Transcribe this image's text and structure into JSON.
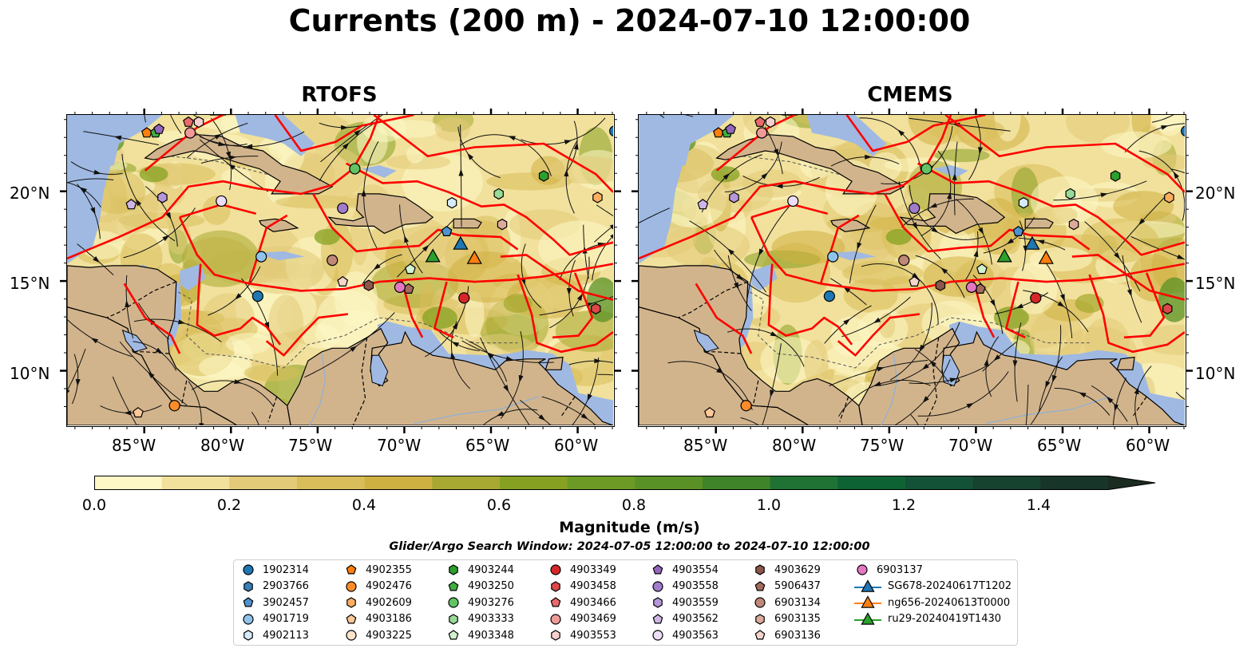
{
  "title": "Currents (200 m) - 2024-07-10 12:00:00",
  "panels": [
    {
      "title": "RTOFS"
    },
    {
      "title": "CMEMS"
    }
  ],
  "axes": {
    "x_ticks": [
      "85°W",
      "80°W",
      "75°W",
      "70°W",
      "65°W",
      "60°W"
    ],
    "y_ticks": [
      "20°N",
      "15°N",
      "10°N"
    ],
    "lon_range": [
      -89.5,
      -58.0
    ],
    "lat_range": [
      7.0,
      24.3
    ]
  },
  "colorbar": {
    "label": "Magnitude (m/s)",
    "ticks": [
      "0.0",
      "0.2",
      "0.4",
      "0.6",
      "0.8",
      "1.0",
      "1.2",
      "1.4"
    ],
    "min": 0.0,
    "max": 1.5,
    "step": 0.1,
    "extend": "max",
    "colors": [
      "#fef8c6",
      "#f1e19c",
      "#e2ca78",
      "#d8bd5a",
      "#cfb142",
      "#a8a932",
      "#86a122",
      "#6c9a24",
      "#5a9126",
      "#3f8428",
      "#1f7233",
      "#0e6334",
      "#135236",
      "#164330",
      "#18352a",
      "#1b2b20"
    ]
  },
  "search_window": "Glider/Argo Search Window: 2024-07-05 12:00:00 to 2024-07-10 12:00:00",
  "colors": {
    "land": "#d2b48c",
    "shelf": "#9fb9e2",
    "boundary": "#ff0000"
  },
  "legend": [
    {
      "label": "1902314",
      "marker": "circle",
      "color": "#1f77b4"
    },
    {
      "label": "2903766",
      "marker": "hexagon",
      "color": "#3a7fb5"
    },
    {
      "label": "3902457",
      "marker": "pentagon",
      "color": "#4e93cf"
    },
    {
      "label": "4901719",
      "marker": "circle",
      "color": "#8fc3ea"
    },
    {
      "label": "4902113",
      "marker": "hexagon",
      "color": "#d6ebfa"
    },
    {
      "label": "4902355",
      "marker": "pentagon",
      "color": "#ff7f0e"
    },
    {
      "label": "4902476",
      "marker": "circle",
      "color": "#ff8c2a"
    },
    {
      "label": "4902609",
      "marker": "hexagon",
      "color": "#ffae62"
    },
    {
      "label": "4903186",
      "marker": "pentagon",
      "color": "#ffc898"
    },
    {
      "label": "4903225",
      "marker": "circle",
      "color": "#ffe4cc"
    },
    {
      "label": "4903244",
      "marker": "hexagon",
      "color": "#2ca02c"
    },
    {
      "label": "4903250",
      "marker": "pentagon",
      "color": "#3fae3f"
    },
    {
      "label": "4903276",
      "marker": "circle",
      "color": "#63c263"
    },
    {
      "label": "4903333",
      "marker": "hexagon",
      "color": "#98da98"
    },
    {
      "label": "4903348",
      "marker": "pentagon",
      "color": "#d2f2d2"
    },
    {
      "label": "4903349",
      "marker": "circle",
      "color": "#d62728"
    },
    {
      "label": "4903458",
      "marker": "hexagon",
      "color": "#dd4748"
    },
    {
      "label": "4903466",
      "marker": "pentagon",
      "color": "#e86a6a"
    },
    {
      "label": "4903469",
      "marker": "circle",
      "color": "#f09a98"
    },
    {
      "label": "4903553",
      "marker": "hexagon",
      "color": "#f8cfcf"
    },
    {
      "label": "4903554",
      "marker": "pentagon",
      "color": "#9467bd"
    },
    {
      "label": "4903558",
      "marker": "circle",
      "color": "#a07ccb"
    },
    {
      "label": "4903559",
      "marker": "hexagon",
      "color": "#b598d8"
    },
    {
      "label": "4903562",
      "marker": "pentagon",
      "color": "#cdb6e6"
    },
    {
      "label": "4903563",
      "marker": "circle",
      "color": "#ecdef8"
    },
    {
      "label": "4903629",
      "marker": "hexagon",
      "color": "#8c564b"
    },
    {
      "label": "5906437",
      "marker": "pentagon",
      "color": "#a36b5e"
    },
    {
      "label": "6903134",
      "marker": "circle",
      "color": "#c08878"
    },
    {
      "label": "6903135",
      "marker": "hexagon",
      "color": "#ddaa9a"
    },
    {
      "label": "6903136",
      "marker": "pentagon",
      "color": "#f5d5cb"
    },
    {
      "label": "6903137",
      "marker": "circle",
      "color": "#e377c2"
    },
    {
      "label": "SG678-20240617T1202",
      "marker": "triangle",
      "color": "#1f77b4"
    },
    {
      "label": "ng656-20240613T0000",
      "marker": "triangle",
      "color": "#ff7f0e"
    },
    {
      "label": "ru29-20240419T1430",
      "marker": "triangle",
      "color": "#2ca02c"
    }
  ],
  "platforms": [
    {
      "id": "1902314",
      "lon": -78.5,
      "lat": 14.2
    },
    {
      "id": "1902314",
      "lon": -57.9,
      "lat": 23.4
    },
    {
      "id": "4901719",
      "lon": -78.3,
      "lat": 16.4
    },
    {
      "id": "4902113",
      "lon": -67.3,
      "lat": 19.4
    },
    {
      "id": "3902457",
      "lon": -67.6,
      "lat": 17.8
    },
    {
      "id": "4902355",
      "lon": -84.9,
      "lat": 23.3
    },
    {
      "id": "4902476",
      "lon": -83.3,
      "lat": 8.1
    },
    {
      "id": "4902609",
      "lon": -58.9,
      "lat": 19.7
    },
    {
      "id": "4903186",
      "lon": -85.4,
      "lat": 7.7
    },
    {
      "id": "4903244",
      "lon": -62.0,
      "lat": 20.9
    },
    {
      "id": "4903250",
      "lon": -84.4,
      "lat": 23.3
    },
    {
      "id": "4903276",
      "lon": -72.9,
      "lat": 21.3
    },
    {
      "id": "4903333",
      "lon": -64.6,
      "lat": 19.9
    },
    {
      "id": "4903348",
      "lon": -69.7,
      "lat": 15.7
    },
    {
      "id": "4903349",
      "lon": -66.6,
      "lat": 14.1
    },
    {
      "id": "4903458",
      "lon": -59.0,
      "lat": 13.5
    },
    {
      "id": "4903466",
      "lon": -82.5,
      "lat": 23.9
    },
    {
      "id": "4903469",
      "lon": -82.4,
      "lat": 23.3
    },
    {
      "id": "4903553",
      "lon": -81.9,
      "lat": 23.9
    },
    {
      "id": "4903554",
      "lon": -84.2,
      "lat": 23.5
    },
    {
      "id": "4903558",
      "lon": -73.6,
      "lat": 19.1
    },
    {
      "id": "4903559",
      "lon": -84.0,
      "lat": 19.7
    },
    {
      "id": "4903562",
      "lon": -85.8,
      "lat": 19.3
    },
    {
      "id": "4903563",
      "lon": -80.6,
      "lat": 19.5
    },
    {
      "id": "4903629",
      "lon": -72.1,
      "lat": 14.8
    },
    {
      "id": "5906437",
      "lon": -69.8,
      "lat": 14.6
    },
    {
      "id": "6903134",
      "lon": -74.2,
      "lat": 16.2
    },
    {
      "id": "6903135",
      "lon": -64.4,
      "lat": 18.2
    },
    {
      "id": "6903136",
      "lon": -73.6,
      "lat": 15.0
    },
    {
      "id": "6903137",
      "lon": -70.3,
      "lat": 14.7
    },
    {
      "id": "SG678-20240617T1202",
      "lon": -66.8,
      "lat": 17.1
    },
    {
      "id": "ng656-20240613T0000",
      "lon": -66.0,
      "lat": 16.3
    },
    {
      "id": "ru29-20240419T1430",
      "lon": -68.4,
      "lat": 16.4
    }
  ]
}
